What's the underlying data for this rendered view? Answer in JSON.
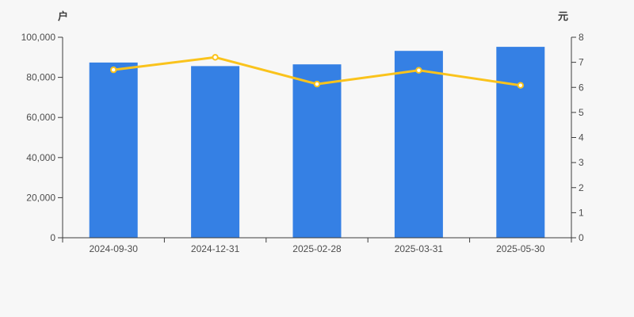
{
  "panel": {
    "background": "#f7f7f7"
  },
  "chart_data": {
    "type": "combo-bar-line",
    "categories": [
      "2024-09-30",
      "2024-12-31",
      "2025-02-28",
      "2025-03-31",
      "2025-05-30"
    ],
    "series": [
      {
        "id": "bar-series",
        "type": "bar",
        "yaxis": "left",
        "color": "#3580e4",
        "values": [
          87400,
          85600,
          86500,
          93200,
          95200
        ]
      },
      {
        "id": "line-series",
        "type": "line",
        "yaxis": "right",
        "color": "#fac31c",
        "marker_fill": "#ffffff",
        "values": [
          6.7,
          7.2,
          6.13,
          6.68,
          6.08
        ]
      }
    ],
    "left_axis": {
      "title": "户",
      "min": 0,
      "max": 100000,
      "ticks": [
        0,
        20000,
        40000,
        60000,
        80000,
        100000
      ],
      "tick_labels": [
        "0",
        "20,000",
        "40,000",
        "60,000",
        "80,000",
        "100,000"
      ]
    },
    "right_axis": {
      "title": "元",
      "min": 0,
      "max": 8,
      "ticks": [
        0,
        1,
        2,
        3,
        4,
        5,
        6,
        7,
        8
      ],
      "tick_labels": [
        "0",
        "1",
        "2",
        "3",
        "4",
        "5",
        "6",
        "7",
        "8"
      ]
    },
    "grid": false,
    "legend": {
      "visible": false
    },
    "axis_color": "#3c3c3c",
    "label_color": "#4d4d4d"
  }
}
